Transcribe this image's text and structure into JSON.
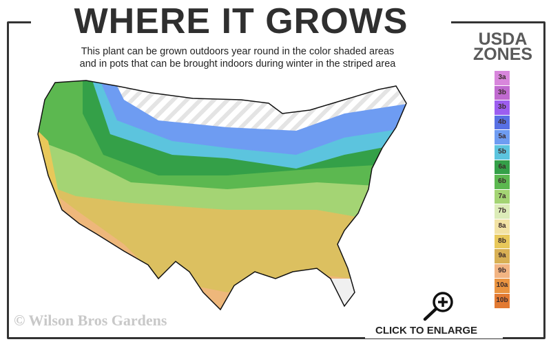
{
  "header": {
    "title": "WHERE IT GROWS",
    "subtitle_line1": "This plant can be grown outdoors year round in the color shaded areas",
    "subtitle_line2": "and in pots that can be brought indoors during winter in the striped area"
  },
  "legend": {
    "title_line1": "USDA",
    "title_line2": "ZONES",
    "zones": [
      {
        "label": "3a",
        "color": "#d886dc"
      },
      {
        "label": "3b",
        "color": "#c06ad0"
      },
      {
        "label": "3b",
        "color": "#9c5ef0"
      },
      {
        "label": "4b",
        "color": "#5870e4"
      },
      {
        "label": "5a",
        "color": "#6e9cf2"
      },
      {
        "label": "5b",
        "color": "#5cc4de"
      },
      {
        "label": "6a",
        "color": "#34a048"
      },
      {
        "label": "6b",
        "color": "#5cb850"
      },
      {
        "label": "7a",
        "color": "#a4d474"
      },
      {
        "label": "7b",
        "color": "#dcecb8"
      },
      {
        "label": "8a",
        "color": "#f2e2a4"
      },
      {
        "label": "8b",
        "color": "#e8c85a"
      },
      {
        "label": "9a",
        "color": "#d8b054"
      },
      {
        "label": "9b",
        "color": "#f2b482"
      },
      {
        "label": "10a",
        "color": "#ea9440"
      },
      {
        "label": "10b",
        "color": "#e27a32"
      }
    ]
  },
  "footer": {
    "watermark": "© Wilson Bros Gardens",
    "enlarge_label": "CLICK TO ENLARGE",
    "enlarge_icon": "zoom-in-icon"
  }
}
